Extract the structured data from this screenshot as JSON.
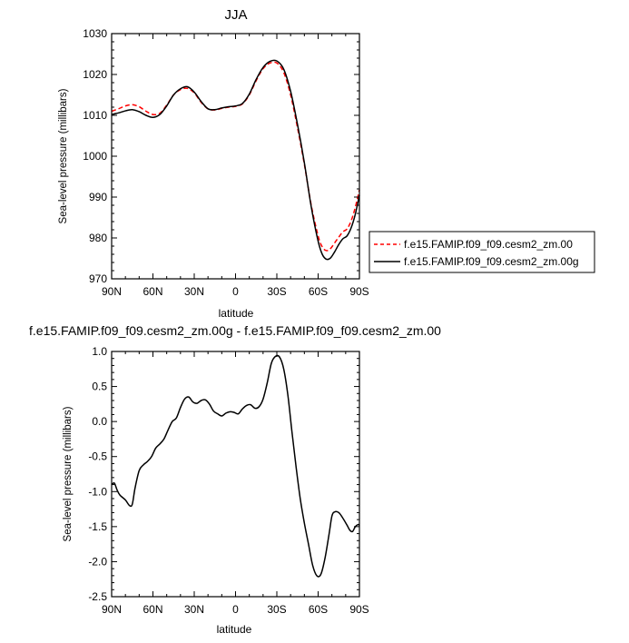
{
  "chart_data": [
    {
      "type": "line",
      "title": "JJA",
      "xlabel": "latitude",
      "ylabel": "Sea-level pressure (millibars)",
      "xlim": [
        90,
        -90
      ],
      "ylim": [
        970,
        1030
      ],
      "x_ticks": [
        90,
        60,
        30,
        0,
        -30,
        -60,
        -90
      ],
      "x_tick_labels": [
        "90N",
        "60N",
        "30N",
        "0",
        "30S",
        "60S",
        "90S"
      ],
      "y_ticks": [
        970,
        980,
        990,
        1000,
        1010,
        1020,
        1030
      ],
      "y_tick_labels": [
        "970",
        "980",
        "990",
        "1000",
        "1010",
        "1020",
        "1030"
      ],
      "legend_position": "right",
      "series": [
        {
          "name": "f.e15.FAMIP.f09_f09.cesm2_zm.00",
          "color": "#ff0000",
          "dash": "dashed",
          "x": [
            90,
            85,
            80,
            75,
            70,
            65,
            60,
            55,
            50,
            45,
            40,
            35,
            30,
            25,
            20,
            15,
            10,
            5,
            0,
            -5,
            -10,
            -15,
            -20,
            -25,
            -30,
            -35,
            -40,
            -45,
            -50,
            -55,
            -60,
            -63,
            -66,
            -69,
            -72,
            -75,
            -78,
            -81,
            -84,
            -87,
            -90
          ],
          "y": [
            1011.0,
            1011.6,
            1012.3,
            1012.6,
            1012.1,
            1011.0,
            1010.2,
            1010.5,
            1012.5,
            1015.0,
            1016.3,
            1016.6,
            1015.5,
            1013.2,
            1011.6,
            1011.3,
            1011.7,
            1012.0,
            1012.2,
            1012.8,
            1015.0,
            1018.5,
            1021.4,
            1022.8,
            1022.8,
            1020.5,
            1015.0,
            1007.0,
            998.0,
            988.0,
            980.5,
            977.8,
            976.9,
            977.4,
            978.8,
            980.2,
            981.5,
            982.2,
            984.2,
            987.5,
            991.8
          ]
        },
        {
          "name": "f.e15.FAMIP.f09_f09.cesm2_zm.00g",
          "color": "#000000",
          "dash": "solid",
          "x": [
            90,
            85,
            80,
            75,
            70,
            65,
            60,
            55,
            50,
            45,
            40,
            35,
            30,
            25,
            20,
            15,
            10,
            5,
            0,
            -5,
            -10,
            -15,
            -20,
            -25,
            -30,
            -35,
            -40,
            -45,
            -50,
            -55,
            -60,
            -63,
            -66,
            -69,
            -72,
            -75,
            -78,
            -81,
            -84,
            -87,
            -90
          ],
          "y": [
            1010.2,
            1010.6,
            1011.1,
            1011.4,
            1010.9,
            1010.0,
            1009.5,
            1010.2,
            1012.3,
            1015.0,
            1016.5,
            1017.0,
            1015.7,
            1013.4,
            1011.6,
            1011.4,
            1011.8,
            1012.1,
            1012.3,
            1012.9,
            1015.2,
            1018.8,
            1021.7,
            1023.2,
            1023.3,
            1021.3,
            1015.9,
            1007.8,
            998.4,
            987.6,
            979.2,
            976.0,
            974.8,
            975.1,
            976.6,
            978.4,
            979.8,
            980.5,
            982.5,
            985.8,
            990.5
          ]
        }
      ]
    },
    {
      "type": "line",
      "title": "f.e15.FAMIP.f09_f09.cesm2_zm.00g - f.e15.FAMIP.f09_f09.cesm2_zm.00",
      "xlabel": "latitude",
      "ylabel": "Sea-level pressure (millibars)",
      "xlim": [
        90,
        -90
      ],
      "ylim": [
        -2.5,
        1.0
      ],
      "x_ticks": [
        90,
        60,
        30,
        0,
        -30,
        -60,
        -90
      ],
      "x_tick_labels": [
        "90N",
        "60N",
        "30N",
        "0",
        "30S",
        "60S",
        "90S"
      ],
      "y_ticks": [
        -2.5,
        -2.0,
        -1.5,
        -1.0,
        -0.5,
        0.0,
        0.5,
        1.0
      ],
      "y_tick_labels": [
        "-2.5",
        "-2.0",
        "-1.5",
        "-1.0",
        "-0.5",
        "0.0",
        "0.5",
        "1.0"
      ],
      "series": [
        {
          "color": "#000000",
          "dash": "solid",
          "x": [
            90,
            88,
            86,
            84,
            80,
            77,
            75,
            73,
            70,
            67,
            64,
            61,
            58,
            55,
            52,
            49,
            46,
            43,
            40,
            37,
            34,
            31,
            28,
            25,
            22,
            19,
            16,
            13,
            10,
            7,
            4,
            1,
            -2,
            -5,
            -8,
            -11,
            -14,
            -17,
            -20,
            -23,
            -26,
            -29,
            -32,
            -35,
            -38,
            -41,
            -44,
            -47,
            -50,
            -53,
            -56,
            -59,
            -62,
            -65,
            -68,
            -70,
            -72,
            -75,
            -78,
            -81,
            -83,
            -85,
            -87,
            -89,
            -90
          ],
          "y": [
            -0.9,
            -0.88,
            -0.98,
            -1.05,
            -1.12,
            -1.2,
            -1.18,
            -0.95,
            -0.7,
            -0.62,
            -0.57,
            -0.5,
            -0.38,
            -0.32,
            -0.25,
            -0.12,
            0.0,
            0.05,
            0.2,
            0.32,
            0.35,
            0.28,
            0.26,
            0.3,
            0.31,
            0.25,
            0.15,
            0.11,
            0.08,
            0.12,
            0.14,
            0.13,
            0.11,
            0.18,
            0.23,
            0.24,
            0.19,
            0.21,
            0.32,
            0.55,
            0.83,
            0.93,
            0.92,
            0.75,
            0.38,
            -0.15,
            -0.65,
            -1.1,
            -1.45,
            -1.75,
            -2.05,
            -2.2,
            -2.18,
            -1.95,
            -1.6,
            -1.35,
            -1.29,
            -1.3,
            -1.38,
            -1.48,
            -1.55,
            -1.57,
            -1.5,
            -1.47,
            -1.48
          ]
        }
      ]
    }
  ]
}
